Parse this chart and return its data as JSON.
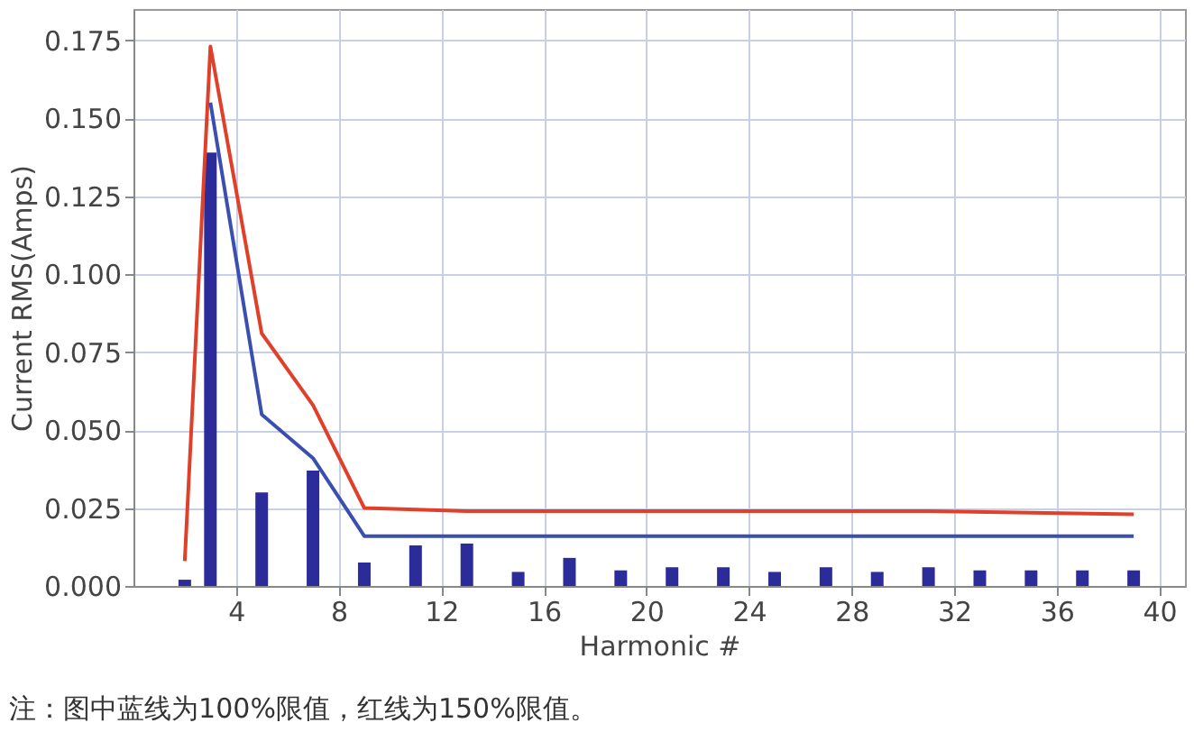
{
  "chart_data": {
    "type": "bar",
    "xlabel": "Harmonic #",
    "ylabel": "Current RMS(Amps)",
    "xlim": [
      0,
      41
    ],
    "xticks": [
      4,
      8,
      12,
      16,
      20,
      24,
      28,
      32,
      36,
      40
    ],
    "ylim": [
      0,
      0.185
    ],
    "yticks": [
      {
        "value": 0,
        "label": "0.000"
      },
      0.025,
      {
        "value": 0.05,
        "label": "0.050"
      },
      0.075,
      {
        "value": 0.1,
        "label": "0.100"
      },
      0.125,
      {
        "value": 0.15,
        "label": "0.150"
      },
      0.175
    ],
    "grid": true,
    "annotations": [
      "注：图中蓝线为100%限值，红线为150%限值。"
    ],
    "x": [
      2,
      3,
      5,
      7,
      9,
      11,
      13,
      15,
      17,
      19,
      21,
      23,
      25,
      27,
      29,
      31,
      33,
      35,
      37,
      39
    ],
    "series": [
      {
        "color": "#2b2b9a",
        "values": [
          0.002,
          0.139,
          0.03,
          0.037,
          0.0075,
          0.013,
          0.0136,
          0.0045,
          0.009,
          0.005,
          0.006,
          0.006,
          0.0045,
          0.006,
          0.0045,
          0.006,
          0.005,
          0.005,
          0.005,
          0.005
        ]
      },
      {
        "type": "line",
        "color": "#e0402a",
        "x": [
          2,
          3,
          5,
          7,
          9,
          13,
          31,
          39
        ],
        "values": [
          0.008,
          0.173,
          0.081,
          0.058,
          0.025,
          0.024,
          0.024,
          0.023
        ]
      },
      {
        "type": "line",
        "color": "#3a4fb0",
        "x": [
          3,
          5,
          7,
          9,
          13,
          31,
          39
        ],
        "values": [
          0.155,
          0.055,
          0.041,
          0.016,
          0.016,
          0.016,
          0.016
        ]
      }
    ]
  }
}
